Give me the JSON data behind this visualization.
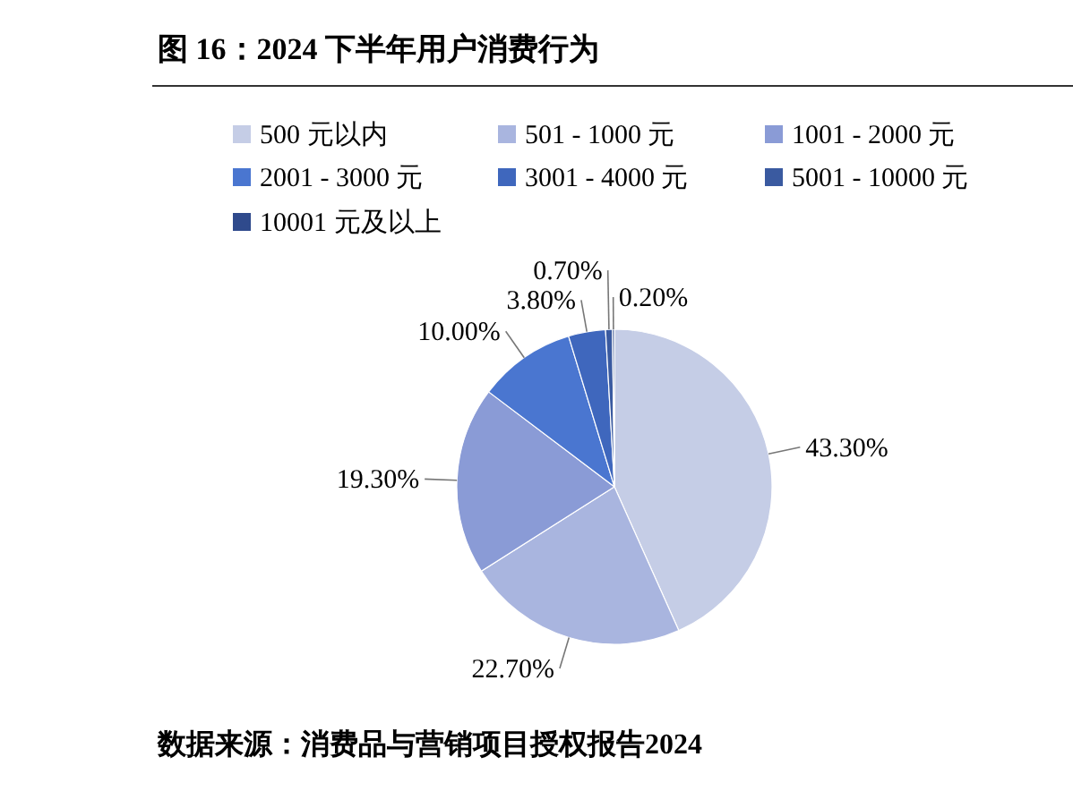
{
  "chart_data": {
    "type": "pie",
    "title": "图 16：2024 下半年用户消费行为",
    "categories": [
      "500 元以内",
      "501 - 1000 元",
      "1001 - 2000 元",
      "2001 - 3000 元",
      "3001 - 4000 元",
      "5001 - 10000 元",
      "10001 元及以上"
    ],
    "values": [
      43.3,
      22.7,
      19.3,
      10.0,
      3.8,
      0.7,
      0.2
    ],
    "value_labels": [
      "43.30%",
      "22.70%",
      "19.30%",
      "10.00%",
      "3.80%",
      "0.70%",
      "0.20%"
    ],
    "colors": [
      "#c5cde6",
      "#a9b5df",
      "#8a9bd6",
      "#4a76d0",
      "#3f67bd",
      "#3a5aa0",
      "#2f4a8c"
    ],
    "legend": "top",
    "annotations": [
      "数据来源：消费品与营销项目授权报告2024"
    ]
  }
}
